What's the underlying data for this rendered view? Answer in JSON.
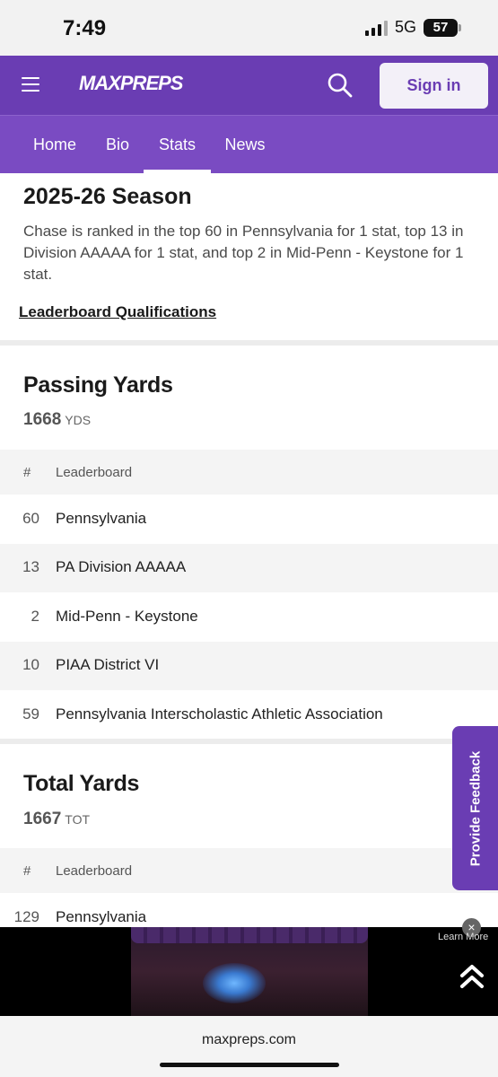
{
  "status_bar": {
    "time": "7:49",
    "network": "5G",
    "battery": "57"
  },
  "header": {
    "logo": "MAXPREPS",
    "sign_in": "Sign in"
  },
  "tabs": [
    {
      "label": "Home"
    },
    {
      "label": "Bio"
    },
    {
      "label": "Stats",
      "active": true
    },
    {
      "label": "News"
    }
  ],
  "season": {
    "title": "2025-26 Season",
    "description": "Chase is ranked in the top 60 in Pennsylvania for 1 stat, top 13 in Division AAAAA for 1 stat, and top 2 in Mid-Penn - Keystone for 1 stat.",
    "link": "Leaderboard Qualifications"
  },
  "sections": [
    {
      "title": "Passing Yards",
      "value": "1668",
      "unit": "YDS",
      "columns": {
        "num": "#",
        "leaderboard": "Leaderboard"
      },
      "rows": [
        {
          "rank": "60",
          "name": "Pennsylvania"
        },
        {
          "rank": "13",
          "name": "PA Division AAAAA"
        },
        {
          "rank": "2",
          "name": "Mid-Penn - Keystone"
        },
        {
          "rank": "10",
          "name": "PIAA District VI"
        },
        {
          "rank": "59",
          "name": "Pennsylvania Interscholastic Athletic Association"
        }
      ]
    },
    {
      "title": "Total Yards",
      "value": "1667",
      "unit": "TOT",
      "columns": {
        "num": "#",
        "leaderboard": "Leaderboard"
      },
      "rows": [
        {
          "rank": "129",
          "name": "Pennsylvania"
        }
      ]
    }
  ],
  "feedback": {
    "label": "Provide Feedback"
  },
  "ad": {
    "close": "×",
    "learn_more": "Learn More"
  },
  "browser": {
    "url": "maxpreps.com"
  },
  "colors": {
    "brand_purple": "#6a3db3",
    "tab_purple": "#7a4bc2"
  }
}
